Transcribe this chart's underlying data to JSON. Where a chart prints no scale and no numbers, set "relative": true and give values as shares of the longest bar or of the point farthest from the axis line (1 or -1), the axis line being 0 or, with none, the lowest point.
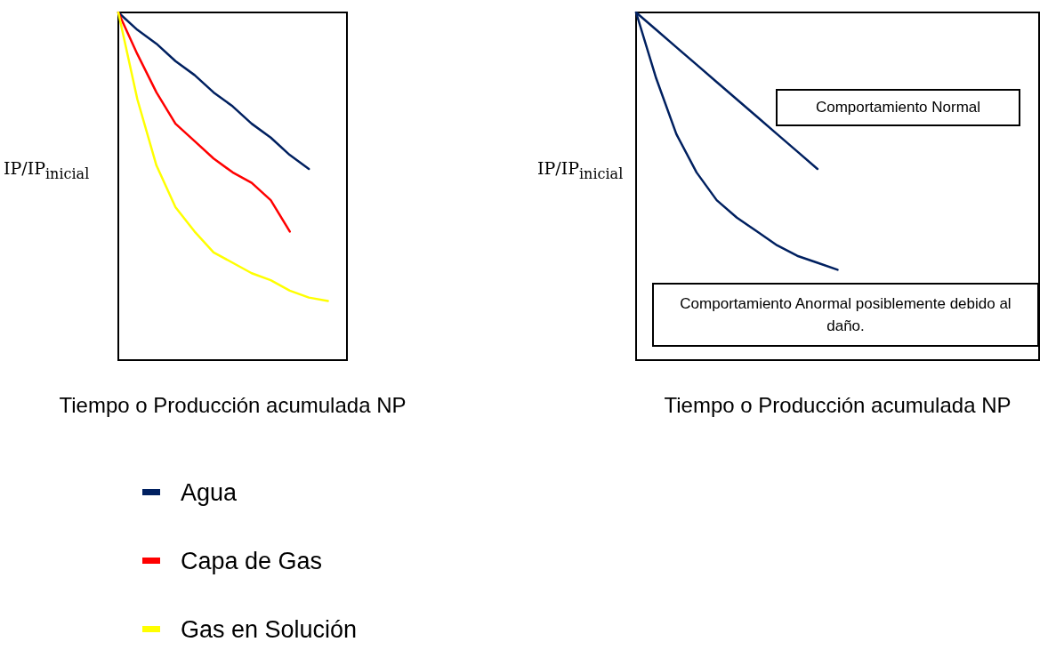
{
  "chart_data": [
    {
      "type": "line",
      "relative": true,
      "ylabel": "IP/IP$_{inicial}$",
      "xlabel": "Tiempo o Producción acumulada NP",
      "legend": "bottom",
      "categories": [
        null,
        null,
        null,
        null,
        null,
        null,
        null,
        null,
        null,
        null,
        null,
        null,
        null
      ],
      "series": [
        {
          "name": "Agua",
          "color": "#002060",
          "values": [
            1,
            0.95,
            0.91,
            0.86,
            0.82,
            0.77,
            0.73,
            0.68,
            0.64,
            0.59,
            0.55,
            null,
            null
          ]
        },
        {
          "name": "Capa de Gas",
          "color": "#ff0000",
          "values": [
            1,
            0.88,
            0.77,
            0.68,
            0.63,
            0.58,
            0.54,
            0.51,
            0.46,
            0.37,
            null,
            null,
            null
          ]
        },
        {
          "name": "Gas en Solución",
          "color": "#ffff00",
          "values": [
            1,
            0.75,
            0.56,
            0.44,
            0.37,
            0.31,
            0.28,
            0.25,
            0.23,
            0.2,
            0.18,
            0.17,
            null
          ]
        }
      ]
    },
    {
      "type": "line",
      "relative": true,
      "ylabel": "IP/IP$_{inicial}$",
      "xlabel": "Tiempo o Producción acumulada NP",
      "annotations": [
        "Comportamiento Normal",
        "Comportamiento Anormal posiblemente debido al daño."
      ],
      "categories": [
        null,
        null,
        null,
        null,
        null,
        null,
        null,
        null,
        null,
        null,
        null,
        null,
        null,
        null,
        null,
        null,
        null,
        null,
        null,
        null,
        null
      ],
      "series": [
        {
          "color": "#002060",
          "values": [
            1,
            0.95,
            0.9,
            0.85,
            0.8,
            0.75,
            0.7,
            0.65,
            0.6,
            0.55,
            null,
            null,
            null,
            null,
            null,
            null,
            null,
            null,
            null,
            null,
            null
          ]
        },
        {
          "color": "#002060",
          "values": [
            1,
            0.81,
            0.65,
            0.54,
            0.46,
            0.41,
            0.37,
            0.33,
            0.3,
            0.28,
            0.26,
            null,
            null,
            null,
            null,
            null,
            null,
            null,
            null,
            null,
            null
          ]
        }
      ]
    }
  ]
}
